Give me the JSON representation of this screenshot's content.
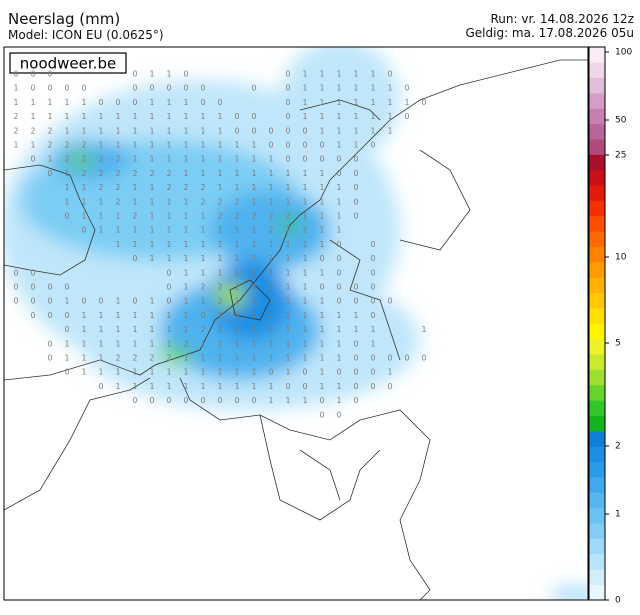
{
  "header": {
    "title": "Neerslag (mm)",
    "model": "Model: ICON EU (0.0625°)",
    "run": "Run: vr. 14.08.2026 12z",
    "valid": "Geldig: ma. 17.08.2026 05u",
    "brand": "noodweer.be"
  },
  "colorbar": {
    "ticks": [
      0,
      1,
      2,
      5,
      10,
      25,
      50,
      100
    ],
    "colors": [
      "#e8f6fd",
      "#d2eefb",
      "#b8e4fa",
      "#9ed9f8",
      "#84cdf5",
      "#6cc2f3",
      "#55b6f0",
      "#3fa9ec",
      "#2a9be8",
      "#1c8ee3",
      "#0f7fd9",
      "#13b31c",
      "#33c62a",
      "#66d42c",
      "#9ee030",
      "#c9ea2e",
      "#eef22b",
      "#fff500",
      "#ffe000",
      "#ffc800",
      "#ffb000",
      "#ff9a00",
      "#ff8200",
      "#ff6a00",
      "#ff4d00",
      "#f33000",
      "#e01b0c",
      "#c8101a",
      "#a80f28",
      "#b04a7a",
      "#b8659a",
      "#c680b0",
      "#d49ec6",
      "#e2bcd8",
      "#efd6ea",
      "#f9ecf6"
    ]
  },
  "grid": [
    [
      0,
      0,
      0,
      null,
      null,
      null,
      null,
      0,
      1,
      1,
      0,
      null,
      null,
      null,
      null,
      null,
      0,
      1,
      1,
      1,
      1,
      1,
      0,
      null,
      null
    ],
    [
      1,
      0,
      0,
      0,
      0,
      null,
      null,
      0,
      0,
      0,
      0,
      0,
      null,
      null,
      0,
      null,
      0,
      1,
      1,
      1,
      1,
      1,
      1,
      0,
      null
    ],
    [
      1,
      1,
      1,
      1,
      1,
      0,
      0,
      0,
      1,
      1,
      1,
      0,
      0,
      null,
      null,
      null,
      0,
      1,
      1,
      1,
      1,
      1,
      1,
      1,
      0
    ],
    [
      2,
      1,
      1,
      1,
      1,
      1,
      1,
      1,
      1,
      1,
      1,
      1,
      1,
      0,
      0,
      null,
      0,
      1,
      1,
      1,
      1,
      1,
      1,
      0,
      null
    ],
    [
      2,
      2,
      2,
      1,
      1,
      1,
      1,
      1,
      1,
      1,
      1,
      1,
      1,
      0,
      0,
      0,
      0,
      0,
      1,
      1,
      1,
      1,
      1,
      null,
      null
    ],
    [
      1,
      1,
      2,
      2,
      2,
      1,
      1,
      1,
      1,
      1,
      1,
      1,
      1,
      1,
      1,
      0,
      0,
      0,
      0,
      1,
      1,
      0,
      null,
      null,
      null
    ],
    [
      null,
      0,
      1,
      2,
      2,
      2,
      2,
      1,
      1,
      1,
      1,
      1,
      1,
      1,
      1,
      1,
      0,
      0,
      0,
      0,
      0,
      null,
      null,
      null,
      null
    ],
    [
      null,
      null,
      0,
      1,
      2,
      2,
      2,
      2,
      2,
      2,
      1,
      1,
      1,
      1,
      1,
      1,
      1,
      1,
      1,
      0,
      0,
      null,
      null,
      null,
      null
    ],
    [
      null,
      null,
      null,
      1,
      1,
      2,
      2,
      1,
      1,
      2,
      2,
      2,
      1,
      1,
      1,
      1,
      1,
      1,
      1,
      1,
      0,
      null,
      null,
      null,
      null
    ],
    [
      null,
      null,
      null,
      1,
      1,
      1,
      2,
      1,
      1,
      1,
      1,
      2,
      2,
      2,
      1,
      1,
      1,
      1,
      1,
      1,
      0,
      null,
      null,
      null,
      null
    ],
    [
      null,
      null,
      null,
      0,
      1,
      1,
      1,
      2,
      1,
      1,
      1,
      1,
      2,
      2,
      2,
      2,
      2,
      1,
      1,
      1,
      0,
      null,
      null,
      null,
      null
    ],
    [
      null,
      null,
      null,
      null,
      0,
      1,
      1,
      1,
      1,
      1,
      1,
      1,
      1,
      1,
      1,
      2,
      2,
      2,
      1,
      1,
      null,
      null,
      null,
      null,
      null
    ],
    [
      null,
      null,
      null,
      null,
      null,
      null,
      1,
      1,
      1,
      1,
      1,
      1,
      1,
      1,
      1,
      1,
      1,
      1,
      1,
      0,
      null,
      0,
      null,
      null,
      null
    ],
    [
      null,
      null,
      null,
      null,
      null,
      null,
      null,
      0,
      1,
      1,
      1,
      1,
      1,
      1,
      1,
      1,
      1,
      1,
      0,
      0,
      null,
      0,
      null,
      null,
      null
    ],
    [
      0,
      0,
      null,
      null,
      null,
      null,
      null,
      null,
      null,
      0,
      1,
      1,
      1,
      1,
      1,
      1,
      1,
      1,
      1,
      0,
      null,
      0,
      null,
      null,
      null
    ],
    [
      0,
      0,
      0,
      0,
      null,
      null,
      null,
      null,
      null,
      0,
      1,
      2,
      2,
      2,
      2,
      2,
      1,
      1,
      0,
      0,
      0,
      0,
      null,
      null,
      null
    ],
    [
      0,
      0,
      0,
      1,
      0,
      0,
      1,
      0,
      1,
      0,
      1,
      1,
      2,
      1,
      2,
      1,
      1,
      1,
      1,
      0,
      0,
      0,
      0,
      null,
      null
    ],
    [
      null,
      0,
      0,
      0,
      1,
      1,
      1,
      1,
      1,
      1,
      1,
      0,
      1,
      2,
      1,
      1,
      1,
      1,
      1,
      1,
      1,
      0,
      null,
      null,
      null
    ],
    [
      null,
      null,
      null,
      0,
      1,
      1,
      1,
      1,
      1,
      1,
      1,
      2,
      2,
      2,
      2,
      2,
      1,
      1,
      1,
      1,
      1,
      1,
      null,
      null,
      1
    ],
    [
      null,
      null,
      0,
      1,
      1,
      1,
      1,
      1,
      1,
      1,
      2,
      1,
      1,
      1,
      1,
      1,
      1,
      1,
      1,
      1,
      0,
      1,
      null,
      null,
      null
    ],
    [
      null,
      null,
      0,
      1,
      1,
      1,
      2,
      2,
      2,
      2,
      1,
      1,
      1,
      1,
      1,
      1,
      1,
      1,
      1,
      1,
      0,
      0,
      0,
      0,
      0
    ],
    [
      null,
      null,
      null,
      0,
      1,
      1,
      1,
      1,
      1,
      1,
      1,
      1,
      1,
      1,
      1,
      0,
      1,
      0,
      1,
      0,
      0,
      0,
      1,
      null,
      null
    ],
    [
      null,
      null,
      null,
      null,
      null,
      0,
      1,
      1,
      1,
      1,
      1,
      1,
      1,
      1,
      1,
      1,
      0,
      0,
      1,
      1,
      0,
      0,
      0,
      null,
      null
    ],
    [
      null,
      null,
      null,
      null,
      null,
      null,
      null,
      0,
      0,
      0,
      0,
      0,
      0,
      0,
      0,
      1,
      1,
      1,
      0,
      1,
      0,
      null,
      null,
      null,
      null
    ],
    [
      null,
      null,
      null,
      null,
      null,
      null,
      null,
      null,
      null,
      null,
      null,
      null,
      null,
      null,
      null,
      null,
      null,
      null,
      0,
      0,
      null,
      null,
      null,
      null,
      null
    ]
  ]
}
